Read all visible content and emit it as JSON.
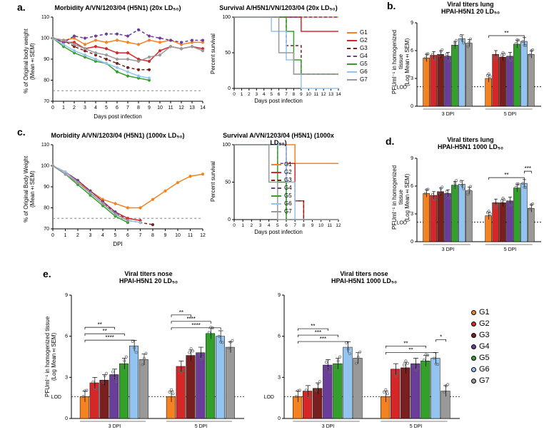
{
  "groups": [
    {
      "id": "G1",
      "color": "#f58220",
      "dash": ""
    },
    {
      "id": "G2",
      "color": "#d62728",
      "dash": ""
    },
    {
      "id": "G3",
      "color": "#7a1f1f",
      "dash": "4,3"
    },
    {
      "id": "G4",
      "color": "#6a3d9a",
      "dash": "4,3"
    },
    {
      "id": "G5",
      "color": "#33a02c",
      "dash": ""
    },
    {
      "id": "G6",
      "color": "#93c4f0",
      "dash": ""
    },
    {
      "id": "G7",
      "color": "#999999",
      "dash": ""
    }
  ],
  "panel_labels": {
    "a": "a.",
    "b": "b.",
    "c": "c.",
    "d": "d.",
    "e": "e."
  },
  "panel_a_morbidity": {
    "title": "Morbidity A/VN/1203/04 (H5N1) (20x LD₅₀)",
    "xlabel": "Days post infection",
    "ylabel": "% of Original body weight\n(Mean±SEM)",
    "ylim": [
      70,
      110
    ],
    "ytick_step": 10,
    "xlim": [
      0,
      14
    ],
    "series": {
      "G1": [
        100,
        99,
        100,
        97,
        99,
        98,
        99,
        98,
        97,
        99,
        98,
        99,
        97,
        98,
        98
      ],
      "G2": [
        100,
        98,
        98,
        95,
        96,
        95,
        93,
        93,
        90,
        89,
        94,
        96,
        95,
        96,
        95
      ],
      "G3": [
        100,
        99,
        96,
        94,
        92,
        90,
        88,
        86,
        85,
        85
      ],
      "G4": [
        100,
        98,
        101,
        100,
        101,
        102,
        102,
        101,
        104,
        101,
        100,
        99,
        98,
        99,
        99
      ],
      "G5": [
        100,
        96,
        93,
        91,
        89,
        88,
        84,
        82,
        81,
        80
      ],
      "G6": [
        100,
        97,
        94,
        92,
        90,
        88,
        86,
        84,
        82,
        81
      ],
      "G7": [
        100,
        99,
        97,
        95,
        93,
        92,
        90,
        90,
        89,
        91,
        92,
        96,
        95,
        96,
        94
      ]
    },
    "ref_line": 75
  },
  "panel_a_survival": {
    "title": "Survival A/H5N1/VN/1203/04 (20x LD₅₀)",
    "xlabel": "Days post infection",
    "ylabel": "Percent survival",
    "ylim": [
      0,
      100
    ],
    "ytick_step": 50,
    "xlim": [
      0,
      14
    ],
    "series": {
      "G1": [
        [
          0,
          100
        ],
        [
          14,
          100
        ]
      ],
      "G2": [
        [
          0,
          100
        ],
        [
          9,
          100
        ],
        [
          9,
          80
        ],
        [
          14,
          80
        ]
      ],
      "G3": [
        [
          0,
          100
        ],
        [
          7,
          100
        ],
        [
          7,
          60
        ],
        [
          9,
          60
        ],
        [
          9,
          20
        ],
        [
          14,
          20
        ]
      ],
      "G4": [
        [
          0,
          100
        ],
        [
          14,
          100
        ]
      ],
      "G5": [
        [
          0,
          100
        ],
        [
          7,
          100
        ],
        [
          7,
          80
        ],
        [
          8,
          80
        ],
        [
          8,
          40
        ],
        [
          9,
          40
        ],
        [
          9,
          20
        ],
        [
          14,
          20
        ]
      ],
      "G6": [
        [
          0,
          100
        ],
        [
          5,
          100
        ],
        [
          5,
          80
        ],
        [
          7,
          80
        ],
        [
          7,
          40
        ],
        [
          8,
          40
        ],
        [
          8,
          20
        ],
        [
          9,
          20
        ],
        [
          9,
          0
        ],
        [
          14,
          0
        ]
      ],
      "G7": [
        [
          0,
          100
        ],
        [
          6,
          100
        ],
        [
          6,
          50
        ],
        [
          8,
          50
        ],
        [
          8,
          20
        ],
        [
          14,
          20
        ]
      ]
    }
  },
  "panel_b": {
    "title": "Viral titers lung\nHPAI-H5N1 20 LD₅₀",
    "ylabel": "PFUml⁻¹ in homogenized tissue\n(Log Mean±SEM)",
    "ylim": [
      0,
      9
    ],
    "ytick_step": 3,
    "lod": 2.1,
    "sig": [
      {
        "g": "5DPI",
        "a": "G1",
        "b": "G6",
        "label": "**"
      }
    ],
    "groups_x": [
      "3 DPI",
      "5 DPI"
    ],
    "data": {
      "3 DPI": {
        "G1": 5.2,
        "G2": 5.5,
        "G3": 5.6,
        "G4": 5.4,
        "G5": 6.6,
        "G6": 7.3,
        "G7": 6.8
      },
      "5 DPI": {
        "G1": 3.0,
        "G2": 5.6,
        "G3": 5.3,
        "G4": 5.4,
        "G5": 6.7,
        "G6": 7.0,
        "G7": 5.6
      }
    }
  },
  "panel_c_morbidity": {
    "title": "Morbidity A/VN/1203/04 (H5N1) (1000x LD₅₀)",
    "xlabel": "DPI",
    "ylabel": "% of Original Body Weight\n(Mean±SEM)",
    "ylim": [
      70,
      110
    ],
    "ytick_step": 10,
    "xlim": [
      0,
      12
    ],
    "series": {
      "G1": [
        100,
        96,
        92,
        88,
        84,
        82,
        80,
        80,
        84,
        88,
        92,
        95,
        96
      ],
      "G2": [
        100,
        97,
        93,
        88,
        83,
        78,
        75,
        74
      ],
      "G3": [
        100,
        97,
        92,
        87,
        82,
        78,
        74,
        73,
        72
      ],
      "G4": [
        100,
        97,
        93,
        88,
        83,
        78,
        74
      ],
      "G5": [
        100,
        96,
        91,
        86,
        81,
        76,
        73
      ],
      "G6": [
        100,
        97,
        92,
        87,
        82,
        77,
        74,
        73
      ],
      "G7": [
        100,
        96,
        92,
        87,
        82,
        77,
        74
      ]
    },
    "ref_line": 75
  },
  "panel_c_survival": {
    "title": "Survival A/VN/1203/04 (H5N1) (1000x LD₅₀)",
    "xlabel": "Days post infection",
    "ylabel": "Percent survival",
    "ylim": [
      0,
      100
    ],
    "ytick_step": 50,
    "xlim": [
      0,
      12
    ],
    "series": {
      "G1": [
        [
          0,
          100
        ],
        [
          7,
          100
        ],
        [
          7,
          75
        ],
        [
          12,
          75
        ]
      ],
      "G2": [
        [
          0,
          100
        ],
        [
          6,
          100
        ],
        [
          6,
          75
        ],
        [
          7,
          75
        ],
        [
          7,
          25
        ],
        [
          8,
          25
        ],
        [
          8,
          0
        ],
        [
          12,
          0
        ]
      ],
      "G3": [
        [
          0,
          100
        ],
        [
          6,
          100
        ],
        [
          6,
          50
        ],
        [
          7,
          50
        ],
        [
          7,
          25
        ],
        [
          8,
          25
        ],
        [
          8,
          0
        ],
        [
          12,
          0
        ]
      ],
      "G4": [
        [
          0,
          100
        ],
        [
          5,
          100
        ],
        [
          5,
          75
        ],
        [
          6,
          75
        ],
        [
          6,
          0
        ],
        [
          12,
          0
        ]
      ],
      "G5": [
        [
          0,
          100
        ],
        [
          5,
          100
        ],
        [
          5,
          50
        ],
        [
          6,
          50
        ],
        [
          6,
          0
        ],
        [
          12,
          0
        ]
      ],
      "G6": [
        [
          0,
          100
        ],
        [
          6,
          100
        ],
        [
          6,
          50
        ],
        [
          7,
          50
        ],
        [
          7,
          0
        ],
        [
          12,
          0
        ]
      ],
      "G7": [
        [
          0,
          100
        ],
        [
          4,
          100
        ],
        [
          4,
          50
        ],
        [
          5,
          50
        ],
        [
          5,
          0
        ],
        [
          12,
          0
        ]
      ]
    }
  },
  "panel_d": {
    "title": "Viral titers lung\nHPAI-H5N1 1000 LD₅₀",
    "ylabel": "PFUml⁻¹ in homogenized tissue\n(Log Mean±SEM)",
    "ylim": [
      0,
      9
    ],
    "ytick_step": 3,
    "lod": 2.1,
    "sig": [
      {
        "g": "5DPI",
        "a": "G1",
        "b": "G6",
        "label": "**"
      },
      {
        "g": "5DPI",
        "a": "G6",
        "b": "G7",
        "label": "***"
      }
    ],
    "groups_x": [
      "3 DPI",
      "5 DPI"
    ],
    "data": {
      "3 DPI": {
        "G1": 5.2,
        "G2": 5.0,
        "G3": 5.4,
        "G4": 5.2,
        "G5": 6.1,
        "G6": 6.2,
        "G7": 5.5
      },
      "5 DPI": {
        "G1": 2.8,
        "G2": 4.2,
        "G3": 4.2,
        "G4": 4.4,
        "G5": 5.8,
        "G6": 6.3,
        "G7": 3.6
      }
    }
  },
  "panel_e_left": {
    "title": "Viral titers nose\nHPAI-H5N1 20 LD₅₀",
    "ylabel": "PFUml⁻¹ in homogenized tissue\n(Log Mean±SEM)",
    "ylim": [
      0,
      9
    ],
    "ytick_step": 3,
    "lod": 1.6,
    "groups_x": [
      "3 DPI",
      "5 DPI"
    ],
    "sig": [
      {
        "g": "3DPI",
        "a": "G1",
        "b": "G6",
        "label": "****"
      },
      {
        "g": "3DPI",
        "a": "G1",
        "b": "G5",
        "label": "**"
      },
      {
        "g": "3DPI",
        "a": "G1",
        "b": "G4",
        "label": "**"
      },
      {
        "g": "5DPI",
        "a": "G1",
        "b": "G6",
        "label": "****"
      },
      {
        "g": "5DPI",
        "a": "G1",
        "b": "G5",
        "label": "****"
      },
      {
        "g": "5DPI",
        "a": "G1",
        "b": "G3",
        "label": "**"
      }
    ],
    "data": {
      "3 DPI": {
        "G1": 1.6,
        "G2": 2.6,
        "G3": 2.8,
        "G4": 3.2,
        "G5": 4.0,
        "G6": 5.3,
        "G7": 4.3
      },
      "5 DPI": {
        "G1": 1.6,
        "G2": 3.8,
        "G3": 4.6,
        "G4": 4.8,
        "G5": 6.2,
        "G6": 6.0,
        "G7": 5.2
      }
    }
  },
  "panel_e_right": {
    "title": "Viral titers nose\nHPAI-H5N1 1000 LD₅₀",
    "ylim": [
      0,
      9
    ],
    "ytick_step": 3,
    "lod": 1.6,
    "groups_x": [
      "3 DPI",
      "5 DPI"
    ],
    "sig": [
      {
        "g": "3DPI",
        "a": "G1",
        "b": "G6",
        "label": "***"
      },
      {
        "g": "3DPI",
        "a": "G1",
        "b": "G5",
        "label": "***"
      },
      {
        "g": "3DPI",
        "a": "G1",
        "b": "G4",
        "label": "**"
      },
      {
        "g": "5DPI",
        "a": "G1",
        "b": "G6",
        "label": "**"
      },
      {
        "g": "5DPI",
        "a": "G1",
        "b": "G5",
        "label": "**"
      },
      {
        "g": "5DPI",
        "a": "G6",
        "b": "G7",
        "label": "*"
      }
    ],
    "data": {
      "3 DPI": {
        "G1": 1.6,
        "G2": 2.0,
        "G3": 2.2,
        "G4": 3.9,
        "G5": 4.0,
        "G6": 5.2,
        "G7": 4.4
      },
      "5 DPI": {
        "G1": 1.6,
        "G2": 3.6,
        "G3": 3.7,
        "G4": 4.0,
        "G5": 4.2,
        "G6": 4.4,
        "G7": 2.0
      }
    }
  },
  "bar_style": {
    "width": 0.11,
    "gap": 0.02,
    "point_color": "#888888",
    "err": 0.4
  },
  "line_style": {
    "width": 1.5,
    "marker_r": 2
  }
}
